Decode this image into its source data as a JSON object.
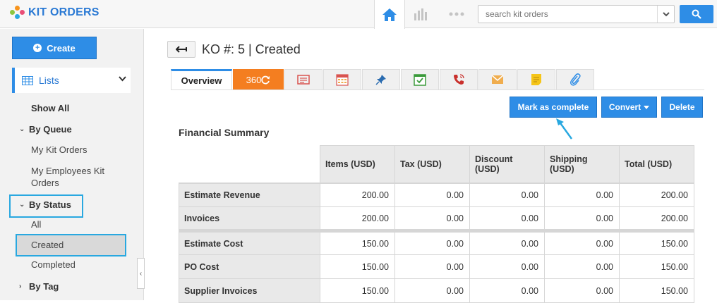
{
  "header": {
    "app_title": "KIT ORDERS",
    "search_placeholder": "search kit orders",
    "accent": "#2e8de6"
  },
  "sidebar": {
    "create_label": "Create",
    "lists_label": "Lists",
    "show_all": "Show All",
    "by_queue": "By Queue",
    "my_kit_orders": "My Kit Orders",
    "my_employees_line1": "My Employees Kit",
    "my_employees_line2": "Orders",
    "by_status": "By Status",
    "all": "All",
    "created": "Created",
    "completed": "Completed",
    "by_tag": "By Tag"
  },
  "main": {
    "title": "KO #: 5 | Created",
    "tabs": {
      "overview": "Overview",
      "t360": "360",
      "icons": [
        "invoice-icon",
        "calendar-icon",
        "pin-icon",
        "task-icon",
        "call-icon",
        "email-icon",
        "note-icon",
        "attachment-icon"
      ]
    },
    "actions": {
      "mark_complete": "Mark as complete",
      "convert": "Convert",
      "delete": "Delete"
    },
    "financial": {
      "title": "Financial Summary",
      "columns": [
        "Items (USD)",
        "Tax (USD)",
        "Discount (USD)",
        "Shipping (USD)",
        "Total (USD)"
      ],
      "col_lines": [
        [
          "Items (USD)"
        ],
        [
          "Tax (USD)"
        ],
        [
          "Discount",
          "(USD)"
        ],
        [
          "Shipping",
          "(USD)"
        ],
        [
          "Total (USD)"
        ]
      ],
      "rows": [
        {
          "label": "Estimate Revenue",
          "values": [
            "200.00",
            "0.00",
            "0.00",
            "0.00",
            "200.00"
          ]
        },
        {
          "label": "Invoices",
          "values": [
            "200.00",
            "0.00",
            "0.00",
            "0.00",
            "200.00"
          ]
        },
        {
          "label": "Estimate Cost",
          "values": [
            "150.00",
            "0.00",
            "0.00",
            "0.00",
            "150.00"
          ]
        },
        {
          "label": "PO Cost",
          "values": [
            "150.00",
            "0.00",
            "0.00",
            "0.00",
            "150.00"
          ]
        },
        {
          "label": "Supplier Invoices",
          "values": [
            "150.00",
            "0.00",
            "0.00",
            "0.00",
            "150.00"
          ]
        }
      ]
    }
  }
}
